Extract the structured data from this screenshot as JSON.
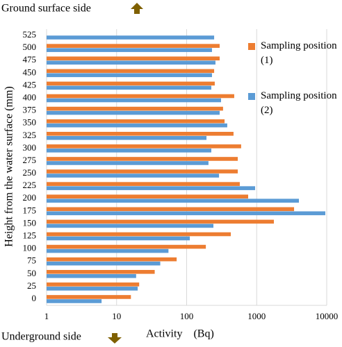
{
  "chart_data": {
    "type": "bar",
    "orientation": "horizontal",
    "top_note": "Ground surface side",
    "bottom_note": "Underground side",
    "x_label": "Activity    (Bq)",
    "y_label": "Height from the water surface (mm)",
    "categories": [
      "0",
      "25",
      "50",
      "75",
      "100",
      "125",
      "150",
      "175",
      "200",
      "225",
      "250",
      "275",
      "300",
      "325",
      "350",
      "375",
      "400",
      "425",
      "450",
      "475",
      "500",
      "525"
    ],
    "series": [
      {
        "name": "Sampling position (1)",
        "color": "#ed7d31",
        "values": [
          16,
          21,
          35,
          72,
          188,
          427,
          1760,
          3420,
          756,
          574,
          537,
          537,
          600,
          467,
          348,
          331,
          478,
          252,
          247,
          296,
          296,
          null
        ]
      },
      {
        "name": "Sampling position (2)",
        "color": "#5b9bd5",
        "values": [
          6.1,
          20,
          19,
          42,
          55,
          111,
          241,
          9550,
          4010,
          950,
          290,
          205,
          225,
          192,
          380,
          296,
          310,
          225,
          230,
          258,
          230,
          247
        ]
      }
    ],
    "log_x": true,
    "xlim": [
      1,
      10000
    ],
    "xticks": [
      1,
      10,
      100,
      1000,
      10000
    ],
    "grid": true,
    "legend": "top-right"
  }
}
